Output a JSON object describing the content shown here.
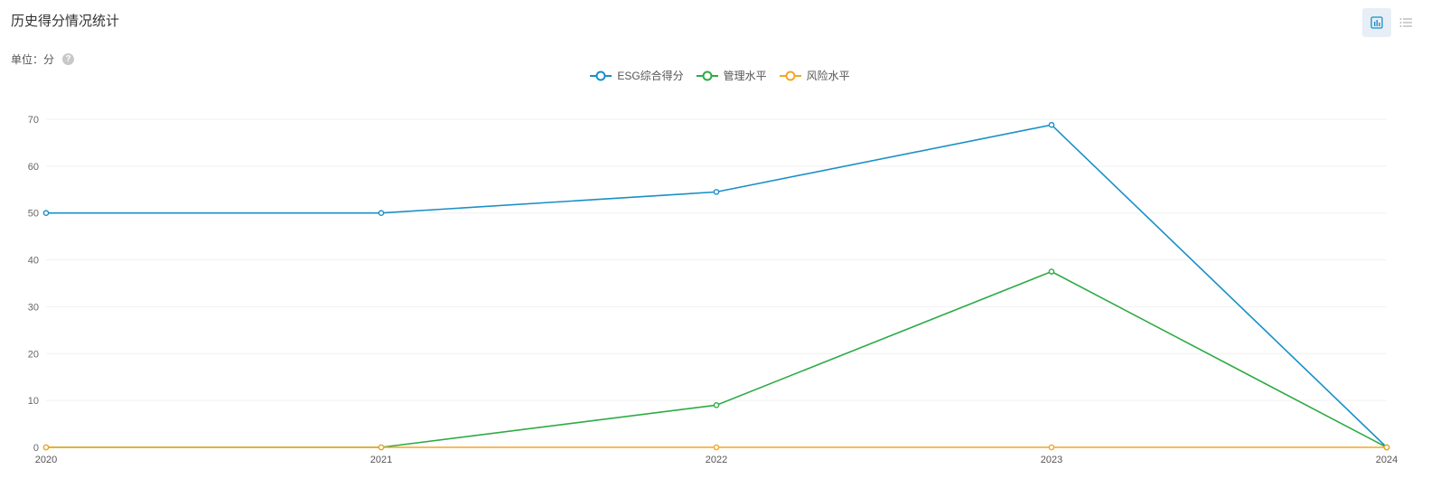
{
  "header": {
    "title": "历史得分情况统计",
    "unit_label": "单位：分",
    "help_icon": "question-circle-icon"
  },
  "toolbar": {
    "chart_view_icon": "bar-chart-icon",
    "list_view_icon": "list-icon"
  },
  "colors": {
    "esg": "#1a8fc7",
    "management": "#2eaa44",
    "risk": "#f5a623"
  },
  "chart_data": {
    "type": "line",
    "x": [
      "2020",
      "2021",
      "2022",
      "2023",
      "2024"
    ],
    "series": [
      {
        "name": "ESG综合得分",
        "values": [
          50,
          50,
          54.5,
          68.8,
          0
        ]
      },
      {
        "name": "管理水平",
        "values": [
          0,
          0,
          9,
          37.5,
          0
        ]
      },
      {
        "name": "风险水平",
        "values": [
          0,
          0,
          0,
          0,
          0
        ]
      }
    ],
    "yticks": [
      0,
      10,
      20,
      30,
      40,
      50,
      60,
      70
    ],
    "ylim": [
      0,
      70
    ],
    "grid": true,
    "legend": "top-center"
  }
}
